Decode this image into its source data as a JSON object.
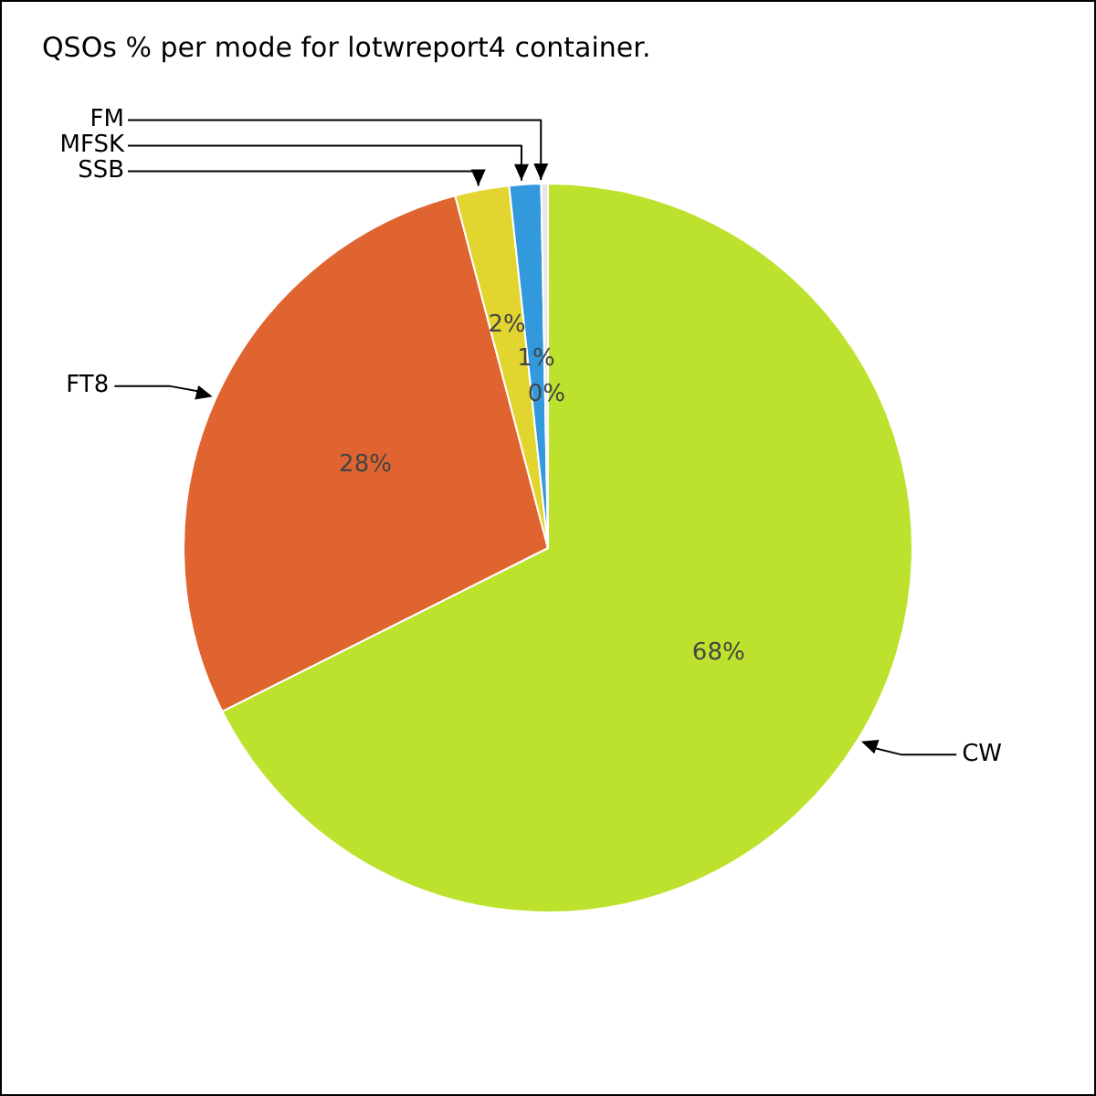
{
  "chart_data": {
    "type": "pie",
    "title": "QSOs % per mode for lotwreport4 container.",
    "categories": [
      "CW",
      "FT8",
      "SSB",
      "MFSK",
      "FM"
    ],
    "values": [
      67.6,
      28.3,
      2.4,
      1.4,
      0.3
    ],
    "colors": [
      "#bde22e",
      "#e06430",
      "#e2d530",
      "#3399dd",
      "#e8e8e8"
    ],
    "value_labels": [
      "68%",
      "28%",
      "2%",
      "1%",
      "0%"
    ],
    "legend": false
  }
}
